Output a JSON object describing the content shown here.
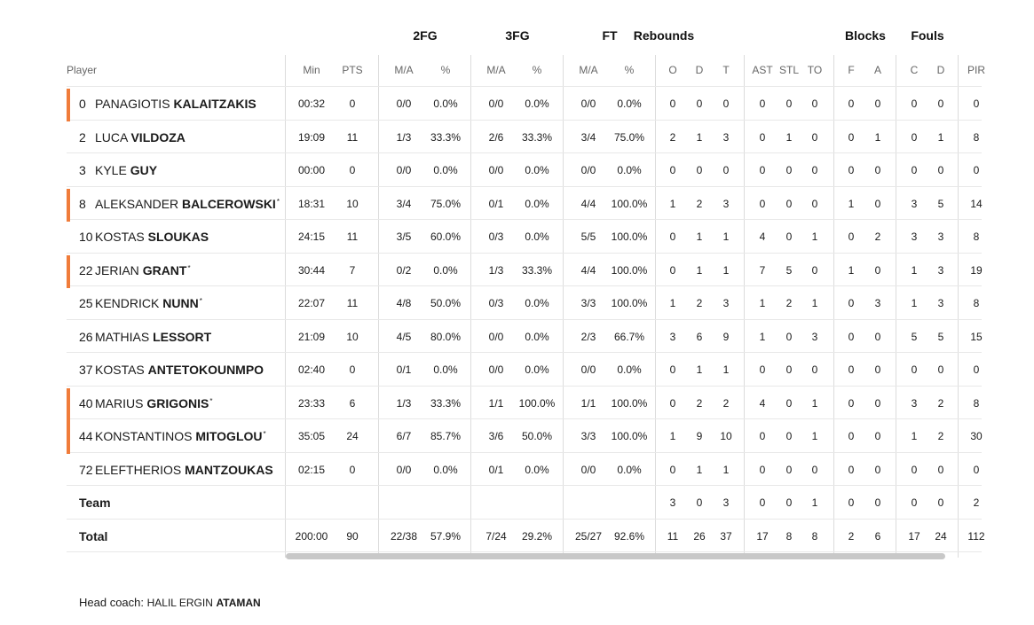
{
  "groups": [
    "2FG",
    "3FG",
    "FT",
    "Rebounds",
    "Blocks",
    "Fouls"
  ],
  "headers": {
    "player": "Player",
    "cols": [
      "Min",
      "PTS",
      "M/A",
      "%",
      "M/A",
      "%",
      "M/A",
      "%",
      "O",
      "D",
      "T",
      "AST",
      "STL",
      "TO",
      "F",
      "A",
      "C",
      "D",
      "PIR"
    ]
  },
  "players": [
    {
      "num": "0",
      "first": "PANAGIOTIS",
      "last": "KALAITZAKIS",
      "star": "",
      "starter": true,
      "stats": [
        "00:32",
        "0",
        "0/0",
        "0.0%",
        "0/0",
        "0.0%",
        "0/0",
        "0.0%",
        "0",
        "0",
        "0",
        "0",
        "0",
        "0",
        "0",
        "0",
        "0",
        "0",
        "0"
      ]
    },
    {
      "num": "2",
      "first": "LUCA",
      "last": "VILDOZA",
      "star": "",
      "starter": false,
      "stats": [
        "19:09",
        "11",
        "1/3",
        "33.3%",
        "2/6",
        "33.3%",
        "3/4",
        "75.0%",
        "2",
        "1",
        "3",
        "0",
        "1",
        "0",
        "0",
        "1",
        "0",
        "1",
        "8"
      ]
    },
    {
      "num": "3",
      "first": "KYLE",
      "last": "GUY",
      "star": "",
      "starter": false,
      "stats": [
        "00:00",
        "0",
        "0/0",
        "0.0%",
        "0/0",
        "0.0%",
        "0/0",
        "0.0%",
        "0",
        "0",
        "0",
        "0",
        "0",
        "0",
        "0",
        "0",
        "0",
        "0",
        "0"
      ]
    },
    {
      "num": "8",
      "first": "ALEKSANDER",
      "last": "BALCEROWSKI",
      "star": "*",
      "starter": true,
      "stats": [
        "18:31",
        "10",
        "3/4",
        "75.0%",
        "0/1",
        "0.0%",
        "4/4",
        "100.0%",
        "1",
        "2",
        "3",
        "0",
        "0",
        "0",
        "1",
        "0",
        "3",
        "5",
        "14"
      ]
    },
    {
      "num": "10",
      "first": "KOSTAS",
      "last": "SLOUKAS",
      "star": "",
      "starter": false,
      "stats": [
        "24:15",
        "11",
        "3/5",
        "60.0%",
        "0/3",
        "0.0%",
        "5/5",
        "100.0%",
        "0",
        "1",
        "1",
        "4",
        "0",
        "1",
        "0",
        "2",
        "3",
        "3",
        "8"
      ]
    },
    {
      "num": "22",
      "first": "JERIAN",
      "last": "GRANT",
      "star": "*",
      "starter": true,
      "stats": [
        "30:44",
        "7",
        "0/2",
        "0.0%",
        "1/3",
        "33.3%",
        "4/4",
        "100.0%",
        "0",
        "1",
        "1",
        "7",
        "5",
        "0",
        "1",
        "0",
        "1",
        "3",
        "19"
      ]
    },
    {
      "num": "25",
      "first": "KENDRICK",
      "last": "NUNN",
      "star": "*",
      "starter": false,
      "stats": [
        "22:07",
        "11",
        "4/8",
        "50.0%",
        "0/3",
        "0.0%",
        "3/3",
        "100.0%",
        "1",
        "2",
        "3",
        "1",
        "2",
        "1",
        "0",
        "3",
        "1",
        "3",
        "8"
      ]
    },
    {
      "num": "26",
      "first": "MATHIAS",
      "last": "LESSORT",
      "star": "",
      "starter": false,
      "stats": [
        "21:09",
        "10",
        "4/5",
        "80.0%",
        "0/0",
        "0.0%",
        "2/3",
        "66.7%",
        "3",
        "6",
        "9",
        "1",
        "0",
        "3",
        "0",
        "0",
        "5",
        "5",
        "15"
      ]
    },
    {
      "num": "37",
      "first": "KOSTAS",
      "last": "ANTETOKOUNMPO",
      "star": "",
      "starter": false,
      "stats": [
        "02:40",
        "0",
        "0/1",
        "0.0%",
        "0/0",
        "0.0%",
        "0/0",
        "0.0%",
        "0",
        "1",
        "1",
        "0",
        "0",
        "0",
        "0",
        "0",
        "0",
        "0",
        "0"
      ]
    },
    {
      "num": "40",
      "first": "MARIUS",
      "last": "GRIGONIS",
      "star": "*",
      "starter": true,
      "stats": [
        "23:33",
        "6",
        "1/3",
        "33.3%",
        "1/1",
        "100.0%",
        "1/1",
        "100.0%",
        "0",
        "2",
        "2",
        "4",
        "0",
        "1",
        "0",
        "0",
        "3",
        "2",
        "8"
      ]
    },
    {
      "num": "44",
      "first": "KONSTANTINOS",
      "last": "MITOGLOU",
      "star": "*",
      "starter": true,
      "stats": [
        "35:05",
        "24",
        "6/7",
        "85.7%",
        "3/6",
        "50.0%",
        "3/3",
        "100.0%",
        "1",
        "9",
        "10",
        "0",
        "0",
        "1",
        "0",
        "0",
        "1",
        "2",
        "30"
      ]
    },
    {
      "num": "72",
      "first": "ELEFTHERIOS",
      "last": "MANTZOUKAS",
      "star": "",
      "starter": false,
      "stats": [
        "02:15",
        "0",
        "0/0",
        "0.0%",
        "0/1",
        "0.0%",
        "0/0",
        "0.0%",
        "0",
        "1",
        "1",
        "0",
        "0",
        "0",
        "0",
        "0",
        "0",
        "0",
        "0"
      ]
    }
  ],
  "team": {
    "label": "Team",
    "stats": [
      "",
      "",
      "",
      "",
      "",
      "",
      "",
      "",
      "3",
      "0",
      "3",
      "0",
      "0",
      "1",
      "0",
      "0",
      "0",
      "0",
      "2"
    ]
  },
  "total": {
    "label": "Total",
    "stats": [
      "200:00",
      "90",
      "22/38",
      "57.9%",
      "7/24",
      "29.2%",
      "25/27",
      "92.6%",
      "11",
      "26",
      "37",
      "17",
      "8",
      "8",
      "2",
      "6",
      "17",
      "24",
      "112"
    ]
  },
  "coach": {
    "prefix": "Head coach: ",
    "first": "HALIL ERGIN",
    "last": "ATAMAN"
  }
}
